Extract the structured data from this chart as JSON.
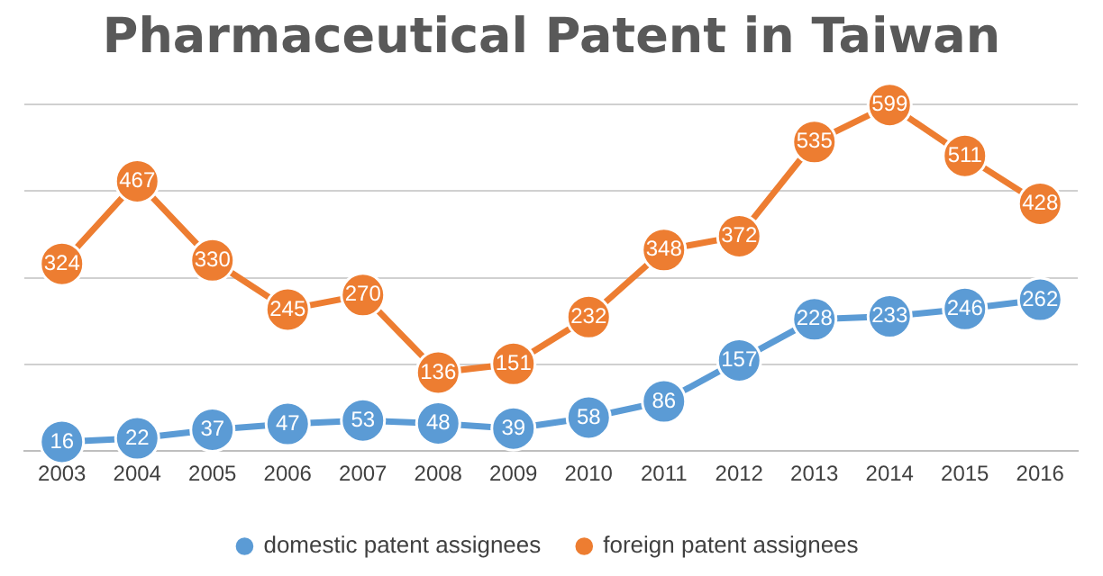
{
  "chart_data": {
    "type": "line",
    "title": "Pharmaceutical Patent in Taiwan",
    "categories": [
      "2003",
      "2004",
      "2005",
      "2006",
      "2007",
      "2008",
      "2009",
      "2010",
      "2011",
      "2012",
      "2013",
      "2014",
      "2015",
      "2016"
    ],
    "series": [
      {
        "name": "domestic patent assignees",
        "color": "#5b9bd5",
        "values": [
          16,
          22,
          37,
          47,
          53,
          48,
          39,
          58,
          86,
          157,
          228,
          233,
          246,
          262
        ]
      },
      {
        "name": "foreign patent assignees",
        "color": "#ed7d31",
        "values": [
          324,
          467,
          330,
          245,
          270,
          136,
          151,
          232,
          348,
          372,
          535,
          599,
          511,
          428
        ]
      }
    ],
    "ylim": [
      0,
      600
    ],
    "yticks": [
      {
        "value": 0,
        "label": null
      },
      {
        "value": 150,
        "label": null
      },
      {
        "value": 300,
        "label": null
      },
      {
        "value": 450,
        "label": null
      },
      {
        "value": 600,
        "label": null
      }
    ],
    "tick_labels": "x",
    "grid": "y",
    "legend": "bottom",
    "marker": "circle",
    "line_style": "solid",
    "data_labels": true
  }
}
